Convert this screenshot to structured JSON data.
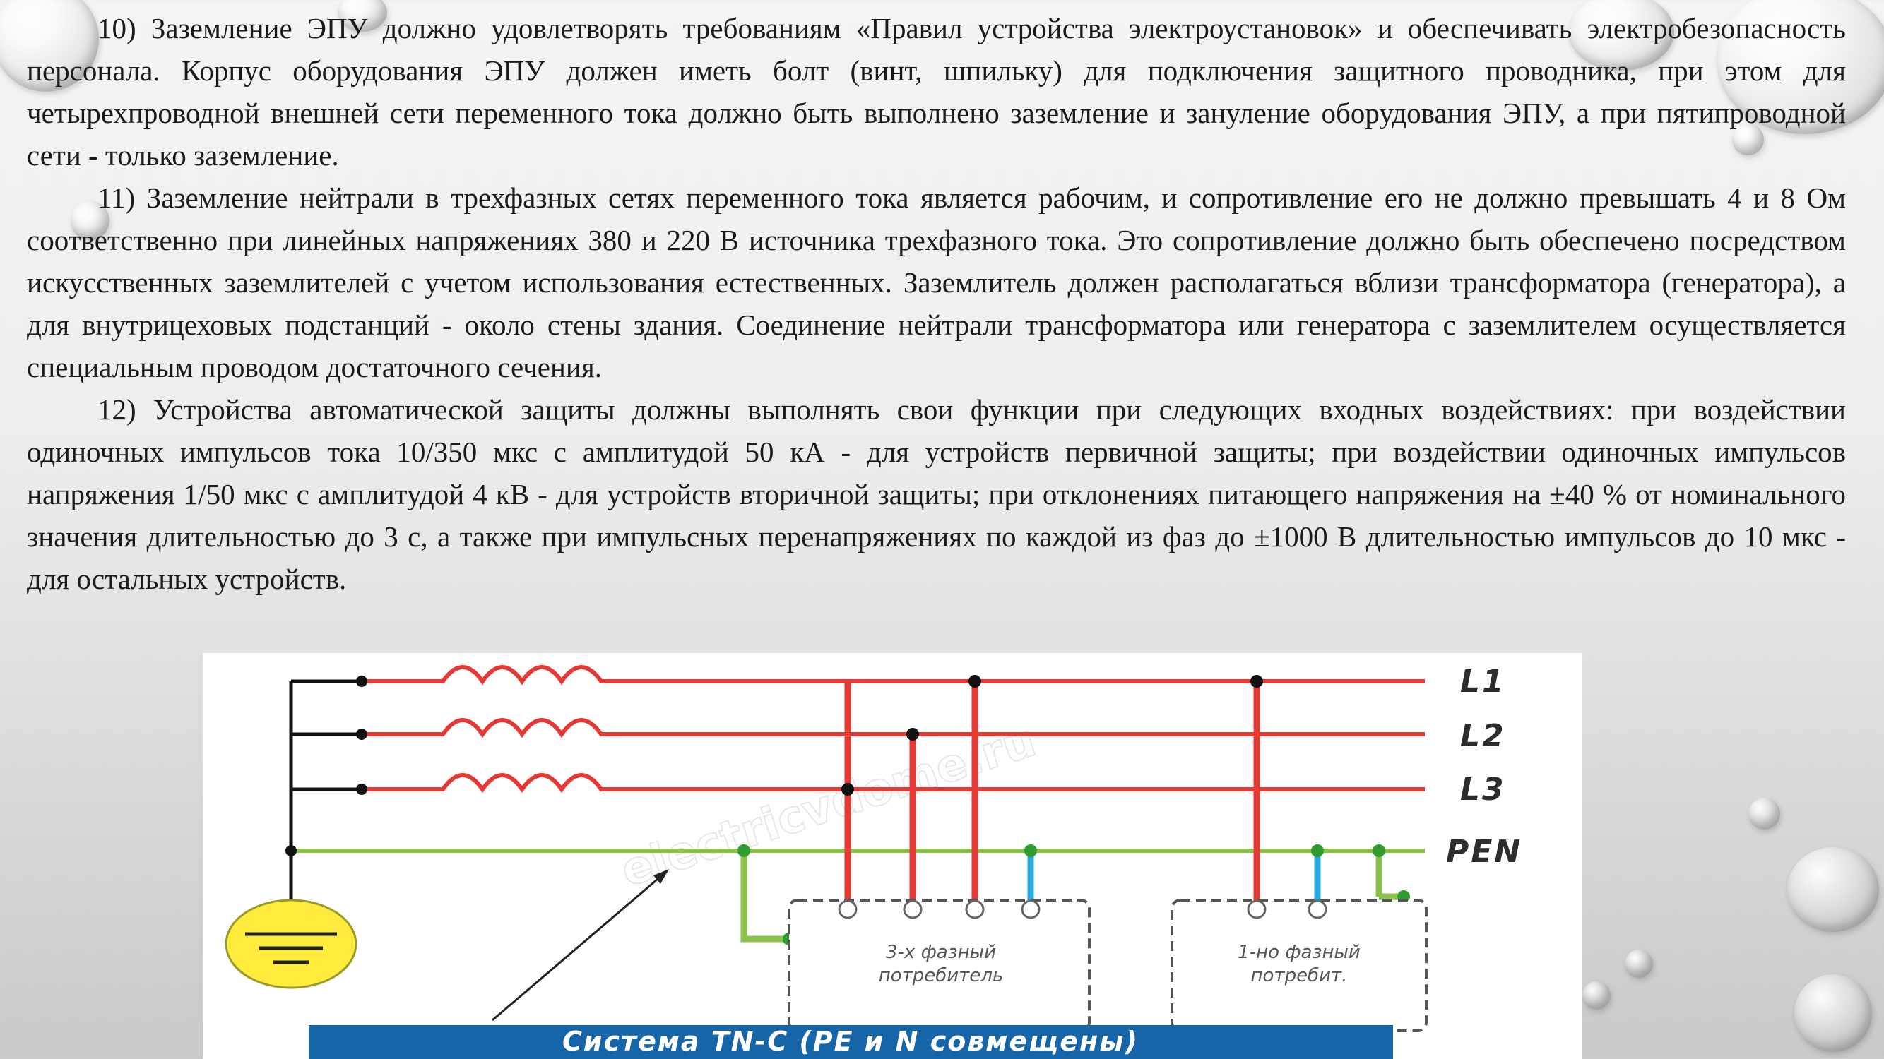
{
  "paragraphs": [
    {
      "text": "10) Заземление ЭПУ должно удовлетворять требованиям «Правил устройства электроустановок» и обеспечивать электробезопасность персонала. Корпус оборудования ЭПУ должен иметь болт (винт, шпильку) для подключения защитного проводника, при этом для четырехпроводной внешней сети переменного тока должно быть выполнено заземление и зануление оборудования ЭПУ, а при пятипроводной сети - только заземление."
    },
    {
      "text": "11) Заземление нейтрали в трехфазных сетях переменного тока является рабочим, и сопротивление его не должно превышать 4 и 8 Ом соответственно при линейных напряжениях 380 и 220 В источника трехфазного тока. Это сопротивление должно быть обеспечено посредством искусственных заземлителей с учетом использования естественных. Заземлитель должен располагаться вблизи трансформатора (генератора), а для внутрицеховых подстанций - около стены здания. Соединение нейтрали трансформатора или генератора с заземлителем осуществляется специальным проводом достаточного сечения."
    },
    {
      "text": "12) Устройства автоматической защиты должны выполнять свои функции при следующих входных воздействиях: при воздействии одиночных импульсов тока 10/350 мкс с амплитудой 50 кА - для устройств первичной защиты; при воздействии одиночных импульсов напряжения 1/50 мкс с амплитудой 4 кВ - для устройств вторичной защиты; при отклонениях питающего напряжения на ±40 % от номинального значения длительностью до 3 с, а также при импульсных перенапряжениях по каждой из фаз до ±1000 В длительностью импульсов до 10 мкс - для остальных устройств."
    }
  ],
  "diagram": {
    "line_labels": {
      "l1": "L1",
      "l2": "L2",
      "l3": "L3",
      "pen": "PEN"
    },
    "consumer_three_phase": {
      "line1": "3-х фазный",
      "line2": "потребитель"
    },
    "consumer_single_phase": {
      "line1": "1-но фазный",
      "line2": "потребит."
    },
    "title": "Система TN-C (PE и N совмещены)",
    "watermark": "electricvdome.ru",
    "colors": {
      "phase": "#e53935",
      "pen": "#8bc34a",
      "neutral": "#29a9e1",
      "ground": "#ffeb3b",
      "title_bg": "#1565a8"
    }
  }
}
